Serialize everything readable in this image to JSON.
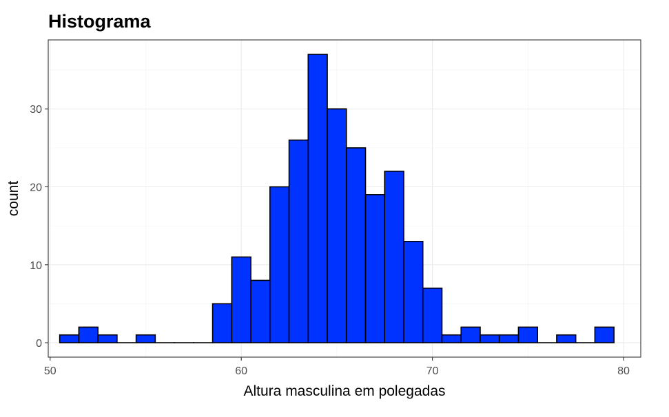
{
  "chart_data": {
    "type": "bar",
    "title": "Histograma",
    "xlabel": "Altura masculina em polegadas",
    "ylabel": "count",
    "bin_width": 1,
    "bin_centers": [
      51,
      52,
      53,
      54,
      55,
      56,
      57,
      58,
      59,
      60,
      61,
      62,
      63,
      64,
      65,
      66,
      67,
      68,
      69,
      70,
      71,
      72,
      73,
      74,
      75,
      76,
      77,
      78,
      79
    ],
    "values": [
      1,
      2,
      1,
      0,
      1,
      0,
      0,
      0,
      5,
      11,
      8,
      20,
      26,
      37,
      30,
      25,
      19,
      22,
      13,
      7,
      1,
      2,
      1,
      1,
      2,
      0,
      1,
      0,
      2
    ],
    "xlim": [
      49.9,
      80.9
    ],
    "ylim": [
      -1.85,
      38.85
    ],
    "x_ticks": [
      50,
      60,
      70,
      80
    ],
    "y_ticks": [
      0,
      10,
      20,
      30
    ],
    "grid": true,
    "colors": {
      "bar_fill": "#0033ff",
      "bar_stroke": "#000000"
    }
  }
}
